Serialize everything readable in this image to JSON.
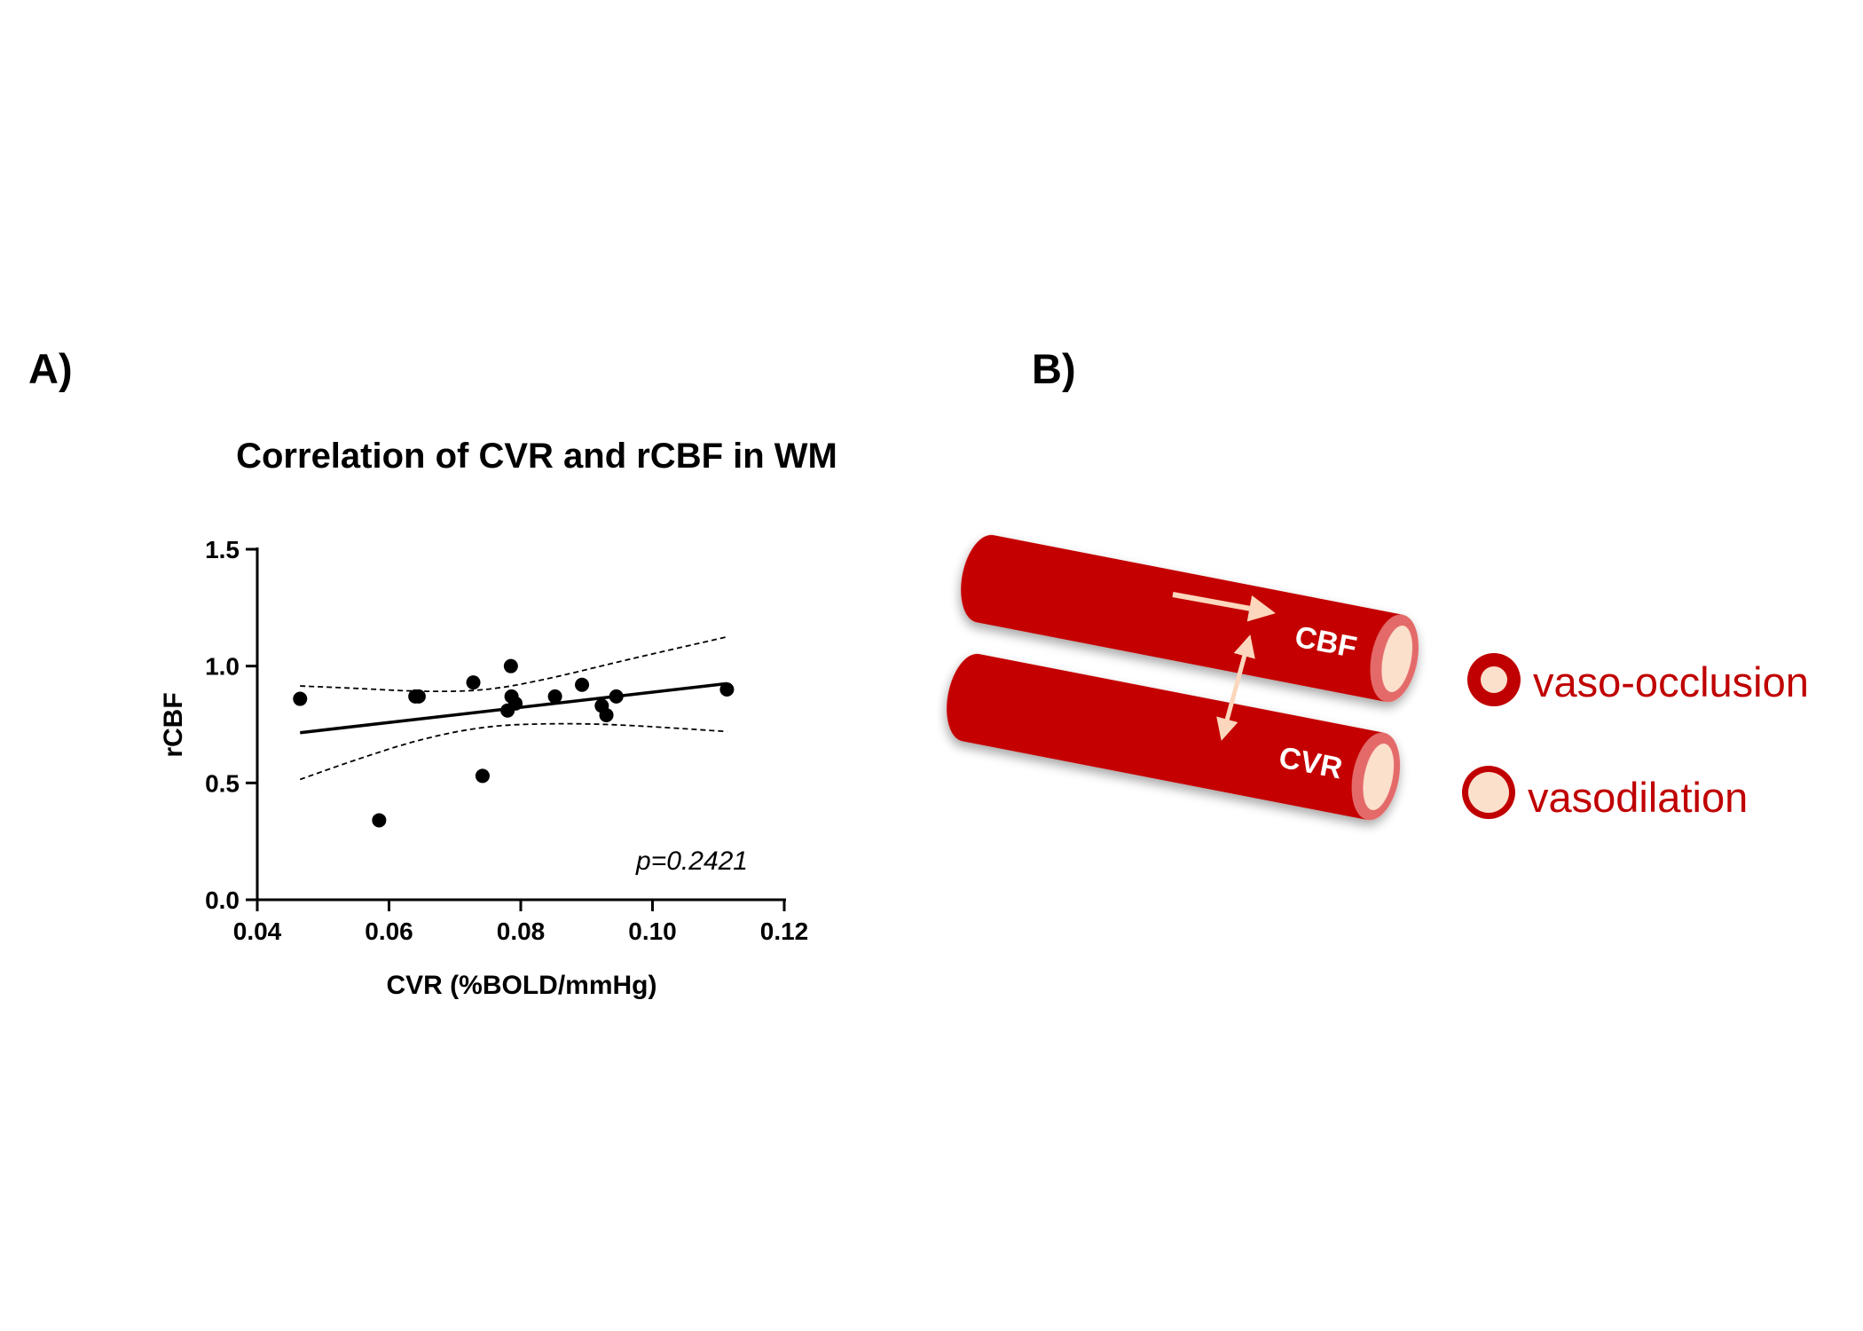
{
  "panels": {
    "a_label": "A)",
    "b_label": "B)"
  },
  "chart_data": {
    "type": "scatter",
    "title": "Correlation of CVR and rCBF in WM",
    "xlabel": "CVR (%BOLD/mmHg)",
    "ylabel": "rCBF",
    "xlim": [
      0.04,
      0.12
    ],
    "ylim": [
      0.0,
      1.5
    ],
    "xticks": [
      "0.04",
      "0.06",
      "0.08",
      "0.10",
      "0.12"
    ],
    "yticks": [
      "0.0",
      "0.5",
      "1.0",
      "1.5"
    ],
    "grid": false,
    "annotation": "p=0.2421",
    "points": [
      {
        "x": 0.0465,
        "y": 0.86
      },
      {
        "x": 0.0585,
        "y": 0.34
      },
      {
        "x": 0.064,
        "y": 0.87
      },
      {
        "x": 0.0645,
        "y": 0.87
      },
      {
        "x": 0.0728,
        "y": 0.93
      },
      {
        "x": 0.0742,
        "y": 0.53
      },
      {
        "x": 0.078,
        "y": 0.81
      },
      {
        "x": 0.0785,
        "y": 1.0
      },
      {
        "x": 0.0786,
        "y": 0.87
      },
      {
        "x": 0.0792,
        "y": 0.84
      },
      {
        "x": 0.0852,
        "y": 0.87
      },
      {
        "x": 0.0893,
        "y": 0.92
      },
      {
        "x": 0.0923,
        "y": 0.83
      },
      {
        "x": 0.093,
        "y": 0.79
      },
      {
        "x": 0.0945,
        "y": 0.87
      },
      {
        "x": 0.1113,
        "y": 0.9
      }
    ],
    "fit_line": {
      "x": [
        0.0465,
        0.1113
      ],
      "y": [
        0.715,
        0.925
      ]
    },
    "ci_upper": {
      "x": [
        0.0465,
        0.055,
        0.065,
        0.075,
        0.085,
        0.095,
        0.1113
      ],
      "y": [
        0.915,
        0.905,
        0.89,
        0.895,
        0.95,
        1.02,
        1.125
      ]
    },
    "ci_lower": {
      "x": [
        0.0465,
        0.055,
        0.065,
        0.075,
        0.085,
        0.095,
        0.1113
      ],
      "y": [
        0.515,
        0.6,
        0.69,
        0.745,
        0.755,
        0.75,
        0.72
      ]
    }
  },
  "diagram": {
    "vessel_top_label": "CBF",
    "vessel_bottom_label": "CVR",
    "legend_occlusion": "vaso-occlusion",
    "legend_dilation": "vasodilation",
    "vessel_color": "#c00000",
    "vessel_dark": "#a80000",
    "lumen_color": "#fbe0cc",
    "rim_color": "#e06060",
    "arrow_color": "#fcd7bd",
    "legend_text_color": "#c00000"
  }
}
